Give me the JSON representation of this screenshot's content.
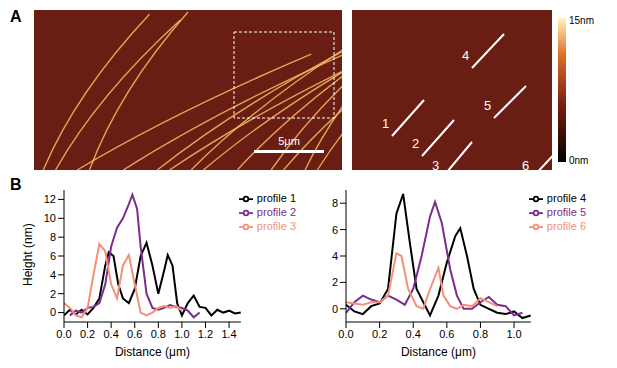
{
  "panel_labels": [
    "A",
    "B"
  ],
  "images": {
    "scale_bar": "5μm",
    "colorbar": {
      "max_label": "15nm",
      "min_label": "0nm"
    },
    "profile_labels": [
      "1",
      "2",
      "3",
      "4",
      "5",
      "6"
    ]
  },
  "chart_data": [
    {
      "type": "line",
      "x_label": "Distance (μm)",
      "y_label": "Height (nm)",
      "xlim": [
        0,
        1.5
      ],
      "ylim": [
        -1,
        13
      ],
      "xticks": [
        {
          "value": 0,
          "label": "0.0"
        },
        {
          "value": 0.2,
          "label": "0.2"
        },
        {
          "value": 0.4,
          "label": "0.4"
        },
        {
          "value": 0.6,
          "label": "0.6"
        },
        {
          "value": 0.8,
          "label": "0.8"
        },
        {
          "value": 1.0,
          "label": "1.0"
        },
        {
          "value": 1.2,
          "label": "1.2"
        },
        {
          "value": 1.4,
          "label": "1.4"
        }
      ],
      "yticks": [
        0,
        2,
        4,
        6,
        8,
        10,
        12
      ],
      "legend": "upper right",
      "series": [
        {
          "name": "profile 1",
          "color": "#000000",
          "x": [
            0,
            0.05,
            0.1,
            0.15,
            0.2,
            0.25,
            0.3,
            0.35,
            0.38,
            0.42,
            0.46,
            0.5,
            0.55,
            0.6,
            0.65,
            0.7,
            0.75,
            0.8,
            0.85,
            0.88,
            0.92,
            0.96,
            1.0,
            1.05,
            1.1,
            1.15,
            1.2,
            1.25,
            1.3,
            1.35,
            1.4,
            1.45,
            1.5
          ],
          "values": [
            -0.3,
            0.3,
            -0.2,
            0.3,
            -0.2,
            0.5,
            1.5,
            5,
            6.4,
            6,
            3,
            1.5,
            1,
            2.5,
            6,
            7.4,
            5,
            2,
            4.5,
            6.1,
            5,
            1,
            -0.3,
            1,
            1.8,
            0.6,
            0.5,
            -0.3,
            0.3,
            0,
            0.2,
            -0.1,
            0
          ]
        },
        {
          "name": "profile 2",
          "color": "#7b2d8b",
          "x": [
            0.05,
            0.1,
            0.15,
            0.2,
            0.25,
            0.3,
            0.35,
            0.4,
            0.45,
            0.5,
            0.55,
            0.58,
            0.62,
            0.65,
            0.7,
            0.75,
            0.8,
            0.85,
            0.9,
            0.95,
            1.0,
            1.05,
            1.1,
            1.15
          ],
          "values": [
            -0.3,
            0.2,
            0,
            0.5,
            0.6,
            1,
            3,
            7,
            9,
            10,
            11.5,
            12.5,
            11,
            7,
            2,
            0.5,
            0.3,
            0.5,
            0.8,
            0.6,
            0.5,
            0.2,
            -0.5,
            0
          ]
        },
        {
          "name": "profile 3",
          "color": "#f4907a",
          "x": [
            0,
            0.05,
            0.1,
            0.15,
            0.2,
            0.25,
            0.3,
            0.35,
            0.4,
            0.45,
            0.5,
            0.55,
            0.6,
            0.65,
            0.7,
            0.75,
            0.8,
            0.85,
            0.9,
            0.95,
            1.0
          ],
          "values": [
            1,
            0.5,
            -0.3,
            -0.5,
            0.5,
            4,
            7.3,
            6.5,
            3,
            1.5,
            5,
            6.1,
            3,
            0,
            -0.3,
            0,
            0.5,
            0.7,
            0.5,
            0.7,
            0.2
          ]
        }
      ]
    },
    {
      "type": "line",
      "x_label": "Distance (μm)",
      "xlim": [
        0,
        1.1
      ],
      "ylim": [
        -1,
        9
      ],
      "xticks": [
        {
          "value": 0,
          "label": "0.0"
        },
        {
          "value": 0.2,
          "label": "0.2"
        },
        {
          "value": 0.4,
          "label": "0.4"
        },
        {
          "value": 0.6,
          "label": "0.6"
        },
        {
          "value": 0.8,
          "label": "0.8"
        },
        {
          "value": 1.0,
          "label": "1.0"
        }
      ],
      "yticks": [
        0,
        2,
        4,
        6,
        8
      ],
      "legend": "upper right",
      "series": [
        {
          "name": "profile 4",
          "color": "#000000",
          "x": [
            0,
            0.05,
            0.1,
            0.15,
            0.2,
            0.25,
            0.3,
            0.34,
            0.38,
            0.42,
            0.46,
            0.5,
            0.55,
            0.6,
            0.65,
            0.68,
            0.72,
            0.76,
            0.8,
            0.85,
            0.9,
            0.95,
            1.0,
            1.05,
            1.1
          ],
          "values": [
            0.3,
            -0.2,
            -0.4,
            0.2,
            0.4,
            1.5,
            7.2,
            8.7,
            5,
            1.5,
            0.5,
            -0.5,
            1,
            3.5,
            5.5,
            6.1,
            4,
            1.5,
            0.3,
            0,
            -0.3,
            -0.4,
            -0.2,
            -0.7,
            -0.5
          ]
        },
        {
          "name": "profile 5",
          "color": "#7b2d8b",
          "x": [
            0,
            0.05,
            0.1,
            0.15,
            0.2,
            0.25,
            0.3,
            0.35,
            0.4,
            0.45,
            0.5,
            0.53,
            0.57,
            0.62,
            0.66,
            0.7,
            0.75,
            0.8,
            0.85,
            0.9,
            0.95,
            1.0,
            1.05
          ],
          "values": [
            -0.3,
            0.5,
            1,
            0.7,
            0.5,
            1,
            0.7,
            0.3,
            1.5,
            4,
            7,
            8.1,
            6.5,
            3,
            1,
            0,
            0,
            0.5,
            0.9,
            0.3,
            0.2,
            -0.5,
            -0.3
          ]
        },
        {
          "name": "profile 6",
          "color": "#f4907a",
          "x": [
            0,
            0.05,
            0.1,
            0.15,
            0.2,
            0.25,
            0.3,
            0.33,
            0.37,
            0.42,
            0.46,
            0.5,
            0.55,
            0.58,
            0.62,
            0.66,
            0.7,
            0.75,
            0.8,
            0.85,
            0.9
          ],
          "values": [
            0.5,
            0.4,
            0.3,
            0.5,
            0.5,
            1,
            4.2,
            4,
            1.5,
            0.2,
            0,
            1.5,
            3.1,
            1,
            0.2,
            0,
            0.3,
            0.2,
            0.8,
            0.5,
            0.2
          ]
        }
      ]
    }
  ]
}
